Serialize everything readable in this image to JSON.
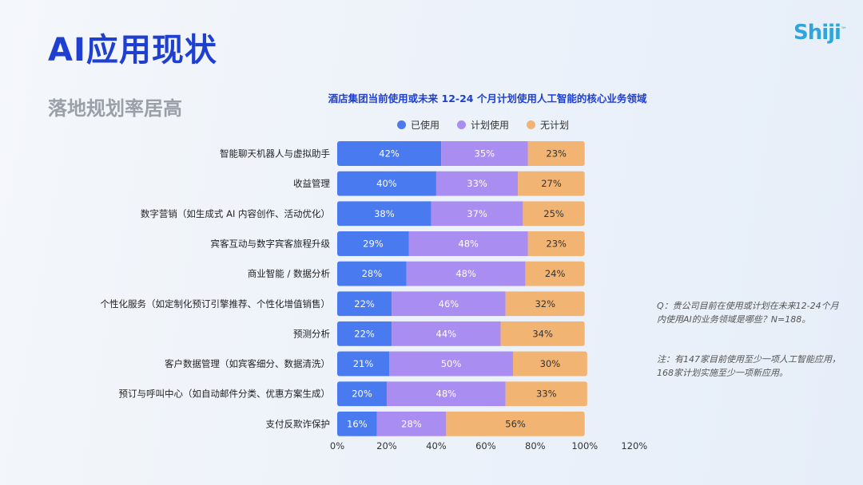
{
  "header": {
    "title": "AI应用现状",
    "subtitle": "落地规划率居高",
    "logo": "Shiji"
  },
  "notes": {
    "question": "Q：贵公司目前在使用或计划在未来12-24个月内使用AI的业务领域是哪些？N=188。",
    "note": "注：有147家目前使用至少一项人工智能应用，168家计划实施至少一项新应用。"
  },
  "chart_data": {
    "type": "bar",
    "orientation": "horizontal",
    "stacked": true,
    "title": "酒店集团当前使用或未来 12-24 个月计划使用人工智能的核心业务领域",
    "categories": [
      "智能聊天机器人与虚拟助手",
      "收益管理",
      "数字营销（如生成式 AI 内容创作、活动优化）",
      "宾客互动与数字宾客旅程升级",
      "商业智能 / 数据分析",
      "个性化服务（如定制化预订引擎推荐、个性化增值销售）",
      "预测分析",
      "客户数据管理（如宾客细分、数据清洗）",
      "预订与呼叫中心（如自动邮件分类、优惠方案生成）",
      "支付反欺诈保护"
    ],
    "series": [
      {
        "name": "已使用",
        "color": "#4a7af0",
        "values": [
          42,
          40,
          38,
          29,
          28,
          22,
          22,
          21,
          20,
          16
        ]
      },
      {
        "name": "计划使用",
        "color": "#a98df0",
        "values": [
          35,
          33,
          37,
          48,
          48,
          46,
          44,
          50,
          48,
          28
        ]
      },
      {
        "name": "无计划",
        "color": "#f2b472",
        "values": [
          23,
          27,
          25,
          23,
          24,
          32,
          34,
          30,
          33,
          56
        ]
      }
    ],
    "xticks": [
      "0%",
      "20%",
      "40%",
      "60%",
      "80%",
      "100%",
      "120%"
    ],
    "xlim": [
      0,
      120
    ],
    "legend_position": "top",
    "grid": false
  }
}
